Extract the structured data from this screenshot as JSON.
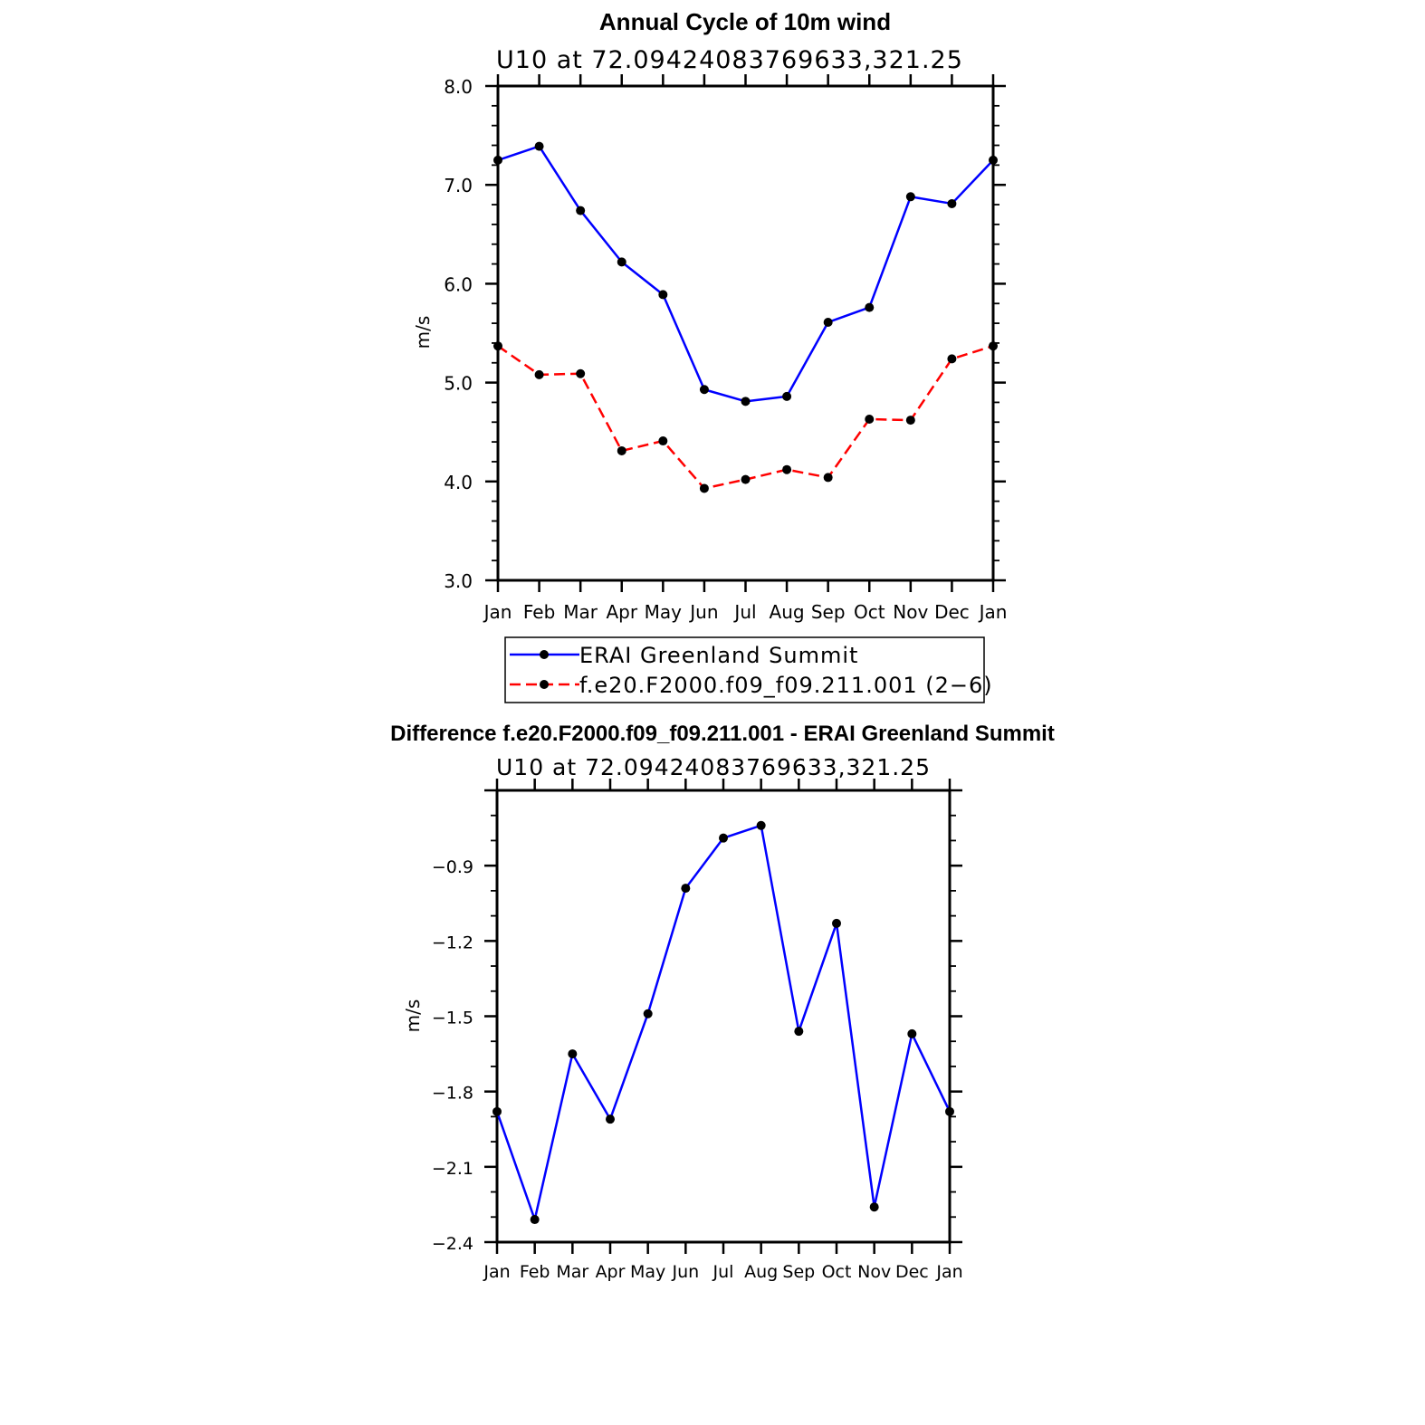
{
  "chart_data": [
    {
      "type": "line",
      "title": "Annual Cycle of 10m wind",
      "subtitle": "U10 at 72.09424083769633,321.25",
      "xlabel": "",
      "ylabel": "m/s",
      "categories": [
        "Jan",
        "Feb",
        "Mar",
        "Apr",
        "May",
        "Jun",
        "Jul",
        "Aug",
        "Sep",
        "Oct",
        "Nov",
        "Dec",
        "Jan"
      ],
      "ylim": [
        3.0,
        8.0
      ],
      "yticks": [
        "3.0",
        "4.0",
        "5.0",
        "6.0",
        "7.0",
        "8.0"
      ],
      "grid": false,
      "legend_position": "bottom",
      "series": [
        {
          "name": "ERAI Greenland Summit",
          "color": "#0000ff",
          "style": "solid",
          "values": [
            7.25,
            7.39,
            6.74,
            6.22,
            5.89,
            4.93,
            4.81,
            4.86,
            5.61,
            5.76,
            6.88,
            6.81,
            7.25
          ]
        },
        {
          "name": "f.e20.F2000.f09_f09.211.001 (2−6)",
          "color": "#ff0000",
          "style": "dashed",
          "values": [
            5.37,
            5.08,
            5.09,
            4.31,
            4.41,
            3.93,
            4.02,
            4.12,
            4.04,
            4.63,
            4.62,
            5.24,
            5.37
          ]
        }
      ]
    },
    {
      "type": "line",
      "title": "Difference f.e20.F2000.f09_f09.211.001 - ERAI Greenland Summit",
      "subtitle": "U10 at 72.09424083769633,321.25",
      "xlabel": "",
      "ylabel": "m/s",
      "categories": [
        "Jan",
        "Feb",
        "Mar",
        "Apr",
        "May",
        "Jun",
        "Jul",
        "Aug",
        "Sep",
        "Oct",
        "Nov",
        "Dec",
        "Jan"
      ],
      "ylim": [
        -2.4,
        -0.6
      ],
      "yticks": [
        "−2.4",
        "−2.1",
        "−1.8",
        "−1.5",
        "−1.2",
        "−0.9"
      ],
      "grid": false,
      "series": [
        {
          "name": "Difference",
          "color": "#0000ff",
          "style": "solid",
          "values": [
            -1.88,
            -2.31,
            -1.65,
            -1.91,
            -1.49,
            -0.99,
            -0.79,
            -0.74,
            -1.56,
            -1.13,
            -2.26,
            -1.57,
            -1.88
          ]
        }
      ]
    }
  ]
}
